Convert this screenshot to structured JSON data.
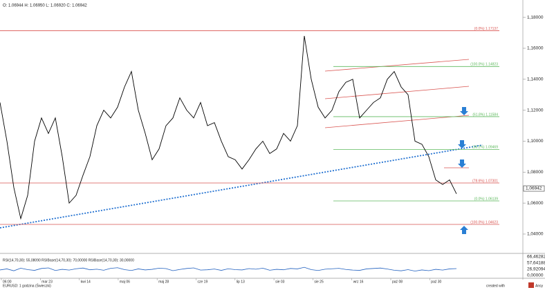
{
  "chart_data": {
    "type": "line",
    "header": "O: 1.06944 H: 1.06950 L: 1.06920 C: 1.06942",
    "ylim": [
      1.0275,
      1.1912
    ],
    "yticks": [
      {
        "value": 1.18,
        "label": "1,18000"
      },
      {
        "value": 1.16,
        "label": "1,16000"
      },
      {
        "value": 1.14,
        "label": "1,14000"
      },
      {
        "value": 1.12,
        "label": "1,12000"
      },
      {
        "value": 1.1,
        "label": "1,10000"
      },
      {
        "value": 1.08,
        "label": "1,08000"
      },
      {
        "value": 1.06,
        "label": "1,06000"
      },
      {
        "value": 1.04,
        "label": "1,04000"
      }
    ],
    "last_price": {
      "value": 1.06942,
      "label": "1,06942"
    },
    "x_labels": [
      "06:00",
      "mar 23",
      "kwi 14",
      "maj 06",
      "maj 28",
      "cze 19",
      "lip 13",
      "sie 03",
      "sie 25",
      "wrz 16",
      "paź 08",
      "paź 30"
    ],
    "series": [
      {
        "name": "EURUSD",
        "color": "#000000",
        "values": [
          1.125,
          1.1,
          1.07,
          1.05,
          1.065,
          1.1,
          1.115,
          1.105,
          1.115,
          1.09,
          1.06,
          1.065,
          1.078,
          1.09,
          1.11,
          1.12,
          1.115,
          1.122,
          1.135,
          1.145,
          1.12,
          1.105,
          1.088,
          1.095,
          1.11,
          1.115,
          1.128,
          1.12,
          1.115,
          1.125,
          1.11,
          1.112,
          1.1,
          1.09,
          1.088,
          1.082,
          1.088,
          1.095,
          1.1,
          1.092,
          1.095,
          1.105,
          1.1,
          1.11,
          1.168,
          1.14,
          1.122,
          1.115,
          1.12,
          1.132,
          1.138,
          1.14,
          1.115,
          1.12,
          1.125,
          1.128,
          1.14,
          1.145,
          1.135,
          1.13,
          1.1,
          1.098,
          1.09,
          1.075,
          1.072,
          1.075,
          1.066
        ]
      }
    ],
    "levels": [
      {
        "label": "(0.0%) 1.17137",
        "value": 1.17137,
        "color": "#d9534f",
        "full": true
      },
      {
        "label": "(100.0%) 1.14823",
        "value": 1.14823,
        "color": "#5cb85c",
        "full": false
      },
      {
        "label": "(61.8%) 1.11584",
        "value": 1.11584,
        "color": "#5cb85c",
        "full": false
      },
      {
        "label": "(38.2%) 1.09469",
        "value": 1.09469,
        "color": "#5cb85c",
        "full": false
      },
      {
        "label": "(78.6%) 1.07301",
        "value": 1.07301,
        "color": "#d9534f",
        "full": true
      },
      {
        "label": "(0.0%) 1.06139",
        "value": 1.06139,
        "color": "#5cb85c",
        "full": false
      },
      {
        "label": "(100.0%) 1.04623",
        "value": 1.04623,
        "color": "#d9534f",
        "full": true
      }
    ],
    "rsi_title": "RSI(14,70,30): 55,08090   RSIBase(14,70,30): 70,00000   RSIBase(14,70,30): 30,00000",
    "rsi_ylim": [
      0,
      100
    ],
    "rsi_axis_labels": [
      "66,46282",
      "57,64188",
      "26,92094",
      "0,00000"
    ],
    "rsi": {
      "name": "RSI",
      "color": "#1f5fbf",
      "values": [
        48,
        55,
        42,
        60,
        50,
        45,
        58,
        62,
        44,
        52,
        47,
        56,
        61,
        49,
        53,
        46,
        59,
        63,
        50,
        44,
        55,
        48,
        52,
        60,
        57,
        43,
        51,
        58,
        62,
        47,
        49,
        54,
        45,
        56,
        50,
        48,
        57,
        53,
        60,
        46,
        52,
        49,
        58,
        55,
        66,
        50,
        44,
        53,
        56,
        59,
        51,
        47,
        45,
        55,
        58,
        61,
        54,
        46,
        42,
        50,
        40,
        48,
        43,
        52,
        47,
        55,
        57
      ]
    },
    "footer": "EURUSD: 1 godzina (Świeczki)",
    "credit": "created with",
    "brand": "Ansy"
  }
}
